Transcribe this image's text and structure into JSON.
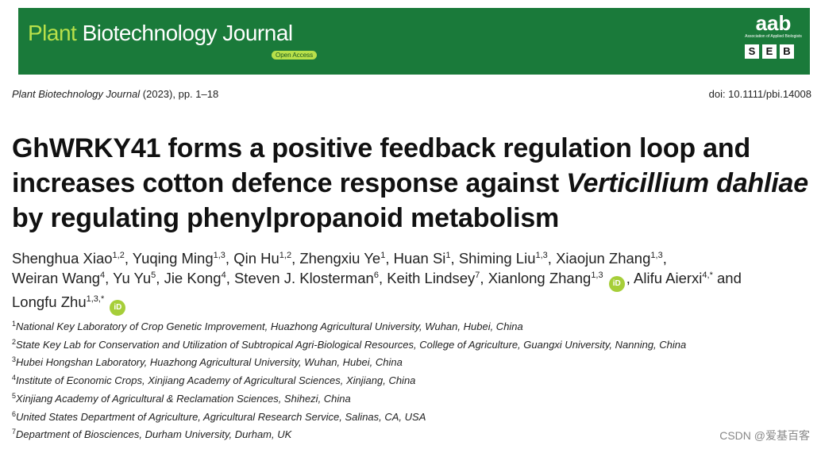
{
  "banner": {
    "journal_part1": "Plant ",
    "journal_part2": "Biotechnology Journal",
    "open_access": "Open Access",
    "logo_main": "aab",
    "logo_sub": "Association of Applied Biologists",
    "seb_letters": [
      "S",
      "E",
      "B"
    ],
    "colors": {
      "background": "#1a7a3a",
      "accent": "#b8e04a"
    }
  },
  "header": {
    "journal_name": "Plant Biotechnology Journal",
    "citation_rest": " (2023), pp. 1–18",
    "doi": "doi: 10.1111/pbi.14008"
  },
  "title": {
    "part1": "GhWRKY41 forms a positive feedback regulation loop and increases cotton defence response against ",
    "italic": "Verticillium dahliae",
    "part2": " by regulating phenylpropanoid metabolism"
  },
  "authors": [
    {
      "name": "Shenghua Xiao",
      "sup": "1,2"
    },
    {
      "name": "Yuqing Ming",
      "sup": "1,3"
    },
    {
      "name": "Qin Hu",
      "sup": "1,2"
    },
    {
      "name": "Zhengxiu Ye",
      "sup": "1"
    },
    {
      "name": "Huan Si",
      "sup": "1"
    },
    {
      "name": "Shiming Liu",
      "sup": "1,3"
    },
    {
      "name": "Xiaojun Zhang",
      "sup": "1,3"
    },
    {
      "name": "Weiran Wang",
      "sup": "4"
    },
    {
      "name": "Yu Yu",
      "sup": "5"
    },
    {
      "name": "Jie Kong",
      "sup": "4"
    },
    {
      "name": "Steven J. Klosterman",
      "sup": "6"
    },
    {
      "name": "Keith Lindsey",
      "sup": "7"
    },
    {
      "name": "Xianlong Zhang",
      "sup": "1,3"
    },
    {
      "name": "Alifu Aierxi",
      "sup": "4,*"
    },
    {
      "name": "Longfu Zhu",
      "sup": "1,3,*"
    }
  ],
  "orcid_label": "iD",
  "and_word": "and",
  "affiliations": [
    {
      "num": "1",
      "text": "National Key Laboratory of Crop Genetic Improvement, Huazhong Agricultural University, Wuhan, Hubei, China"
    },
    {
      "num": "2",
      "text": "State Key Lab for Conservation and Utilization of Subtropical Agri-Biological Resources, College of Agriculture, Guangxi University, Nanning, China"
    },
    {
      "num": "3",
      "text": "Hubei Hongshan Laboratory, Huazhong Agricultural University, Wuhan, Hubei, China"
    },
    {
      "num": "4",
      "text": "Institute of Economic Crops, Xinjiang Academy of Agricultural Sciences, Xinjiang, China"
    },
    {
      "num": "5",
      "text": "Xinjiang Academy of Agricultural & Reclamation Sciences, Shihezi, China"
    },
    {
      "num": "6",
      "text": "United States Department of Agriculture, Agricultural Research Service, Salinas, CA, USA"
    },
    {
      "num": "7",
      "text": "Department of Biosciences, Durham University, Durham, UK"
    }
  ],
  "watermark": "CSDN @爱基百客"
}
